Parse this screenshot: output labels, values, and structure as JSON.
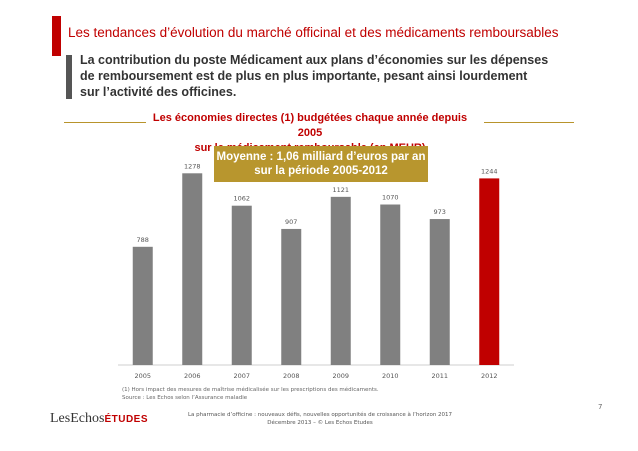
{
  "header": {
    "title": "Les tendances d’évolution du marché officinal et des médicaments remboursables"
  },
  "subtitle": {
    "line1": "La contribution du poste Médicament aux plans d’économies sur les dépenses",
    "line2": "de remboursement est de plus en plus importante, pesant ainsi lourdement",
    "line3": "sur l’activité des officines."
  },
  "average_box": {
    "line1": "Moyenne : 1,06 milliard d’euros par an",
    "line2": "sur la période 2005-2012"
  },
  "chart_data": {
    "type": "bar",
    "title": "Les économies directes (1) budgétées chaque année depuis 2005",
    "subtitle": "sur le médicament remboursable (en MEUR)",
    "categories": [
      "2005",
      "2006",
      "2007",
      "2008",
      "2009",
      "2010",
      "2011",
      "2012"
    ],
    "values": [
      788,
      1278,
      1062,
      907,
      1121,
      1070,
      973,
      1244
    ],
    "ylim": [
      0,
      1300
    ],
    "bar_color": "#808080",
    "highlight_color": "#c00000",
    "highlight_category": "2012",
    "grid": false,
    "legend": "none"
  },
  "footnote": {
    "line1": "(1)    Hors impact des mesures de maîtrise médicalisée sur les prescriptions des médicaments.",
    "line2": "Source :  Les Echos selon l’Assurance maladie"
  },
  "logo": {
    "text": "LesEchos",
    "suffix": "ÉTUDES"
  },
  "footer": {
    "line1": "La pharmacie d’officine : nouveaux défis, nouvelles opportunités de croissance à l’horizon 2017",
    "line2": "Décembre 2013 –  © Les Echos Etudes"
  },
  "page_number": "7",
  "colors": {
    "accent": "#c00000",
    "gold": "#b8962e"
  }
}
